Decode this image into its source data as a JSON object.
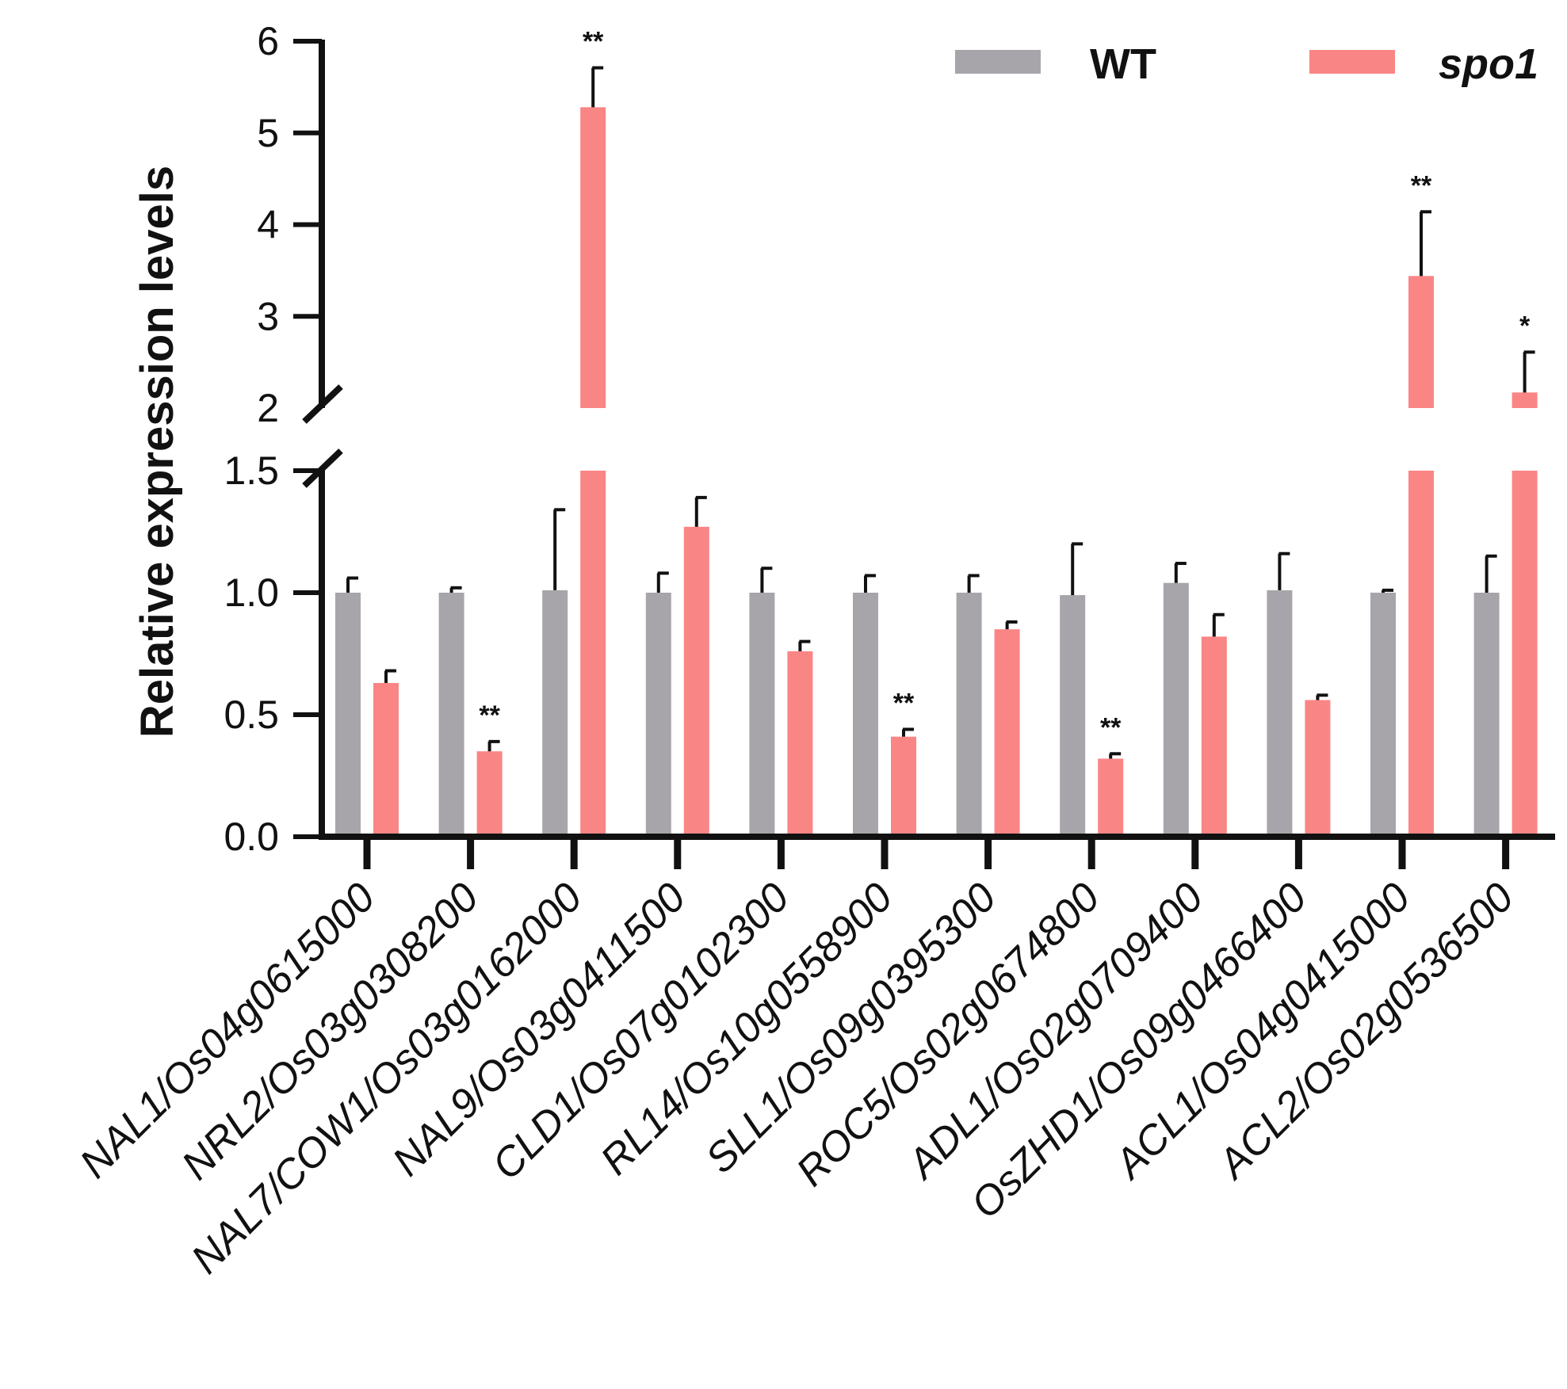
{
  "chart_data": {
    "type": "bar",
    "title": "",
    "xlabel": "",
    "ylabel": "Relative expression levels",
    "axis_break": {
      "lower": [
        0,
        1.5
      ],
      "upper": [
        2,
        6
      ]
    },
    "y_ticks_lower": [
      "0.0",
      "0.5",
      "1.0",
      "1.5"
    ],
    "y_ticks_upper": [
      "2",
      "3",
      "4",
      "5",
      "6"
    ],
    "categories": [
      "NAL1/Os04g0615000",
      "NRL2/Os03g0308200",
      "NAL7/COW1/Os03g0162000",
      "NAL9/Os03g0411500",
      "CLD1/Os07g0102300",
      "RL14/Os10g0558900",
      "SLL1/Os09g0395300",
      "ROC5/Os02g0674800",
      "ADL1/Os02g0709400",
      "OsZHD1/Os09g0466400",
      "ACL1/Os04g0415000",
      "ACL2/Os02g0536500"
    ],
    "series": [
      {
        "name": "WT",
        "color": "#a7a5aa",
        "values": [
          1.0,
          1.0,
          1.01,
          1.0,
          1.0,
          1.0,
          1.0,
          0.99,
          1.04,
          1.01,
          1.0,
          1.0
        ],
        "errors": [
          0.06,
          0.02,
          0.33,
          0.08,
          0.1,
          0.07,
          0.07,
          0.21,
          0.08,
          0.15,
          0.01,
          0.15
        ]
      },
      {
        "name": "spo1",
        "color": "#fa8585",
        "values": [
          0.63,
          0.35,
          5.28,
          1.27,
          0.76,
          0.41,
          0.85,
          0.32,
          0.82,
          0.56,
          3.44,
          2.17
        ],
        "errors": [
          0.05,
          0.04,
          0.43,
          0.12,
          0.04,
          0.03,
          0.03,
          0.02,
          0.09,
          0.02,
          0.7,
          0.44
        ]
      }
    ],
    "significance": [
      "",
      "**",
      "**",
      "",
      "",
      "**",
      "",
      "**",
      "",
      "",
      "**",
      "*"
    ],
    "legend": {
      "position": "top-right"
    }
  }
}
